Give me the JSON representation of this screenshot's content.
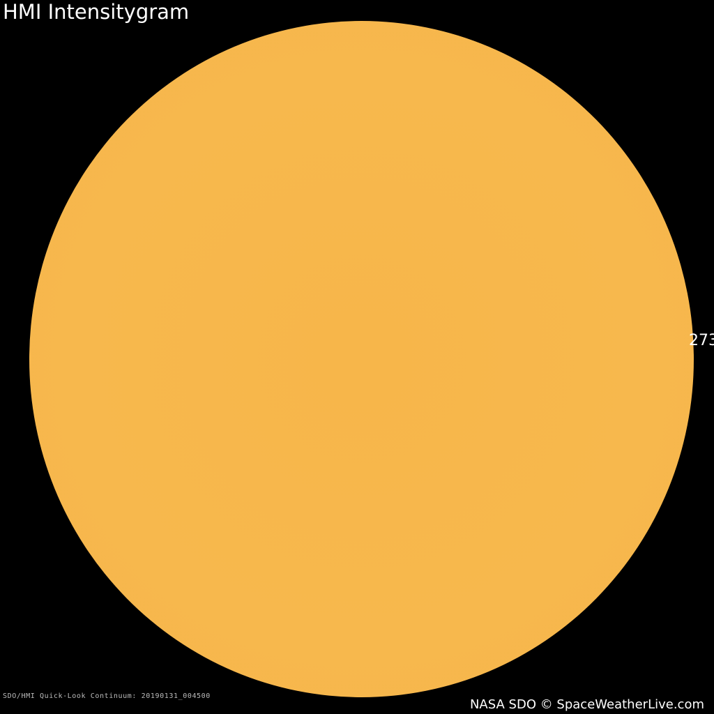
{
  "title": "HMI Intensitygram",
  "region_label": "273",
  "caption": "SDO/HMI Quick-Look Continuum: 20190131_004500",
  "credit": "NASA SDO © SpaceWeatherLive.com",
  "colors": {
    "sun": "#f7b64a",
    "background": "#000000"
  }
}
